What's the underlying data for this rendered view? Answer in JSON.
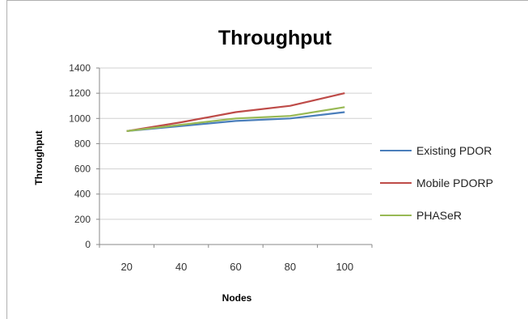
{
  "chart_data": {
    "type": "line",
    "title": "Throughput",
    "xlabel": "Nodes",
    "ylabel": "Throughput",
    "categories": [
      "20",
      "40",
      "60",
      "80",
      "100"
    ],
    "yticks": [
      "0",
      "200",
      "400",
      "600",
      "800",
      "1000",
      "1200",
      "1400"
    ],
    "ylim": [
      0,
      1400
    ],
    "grid": true,
    "legend_position": "right",
    "series": [
      {
        "name": "Existing PDOR",
        "color": "#4a7ebb",
        "values": [
          900,
          940,
          980,
          1000,
          1050
        ]
      },
      {
        "name": "Mobile PDORP",
        "color": "#be4b48",
        "values": [
          900,
          970,
          1050,
          1100,
          1200
        ]
      },
      {
        "name": "PHASeR",
        "color": "#98b954",
        "values": [
          900,
          950,
          1000,
          1020,
          1090
        ]
      }
    ]
  }
}
